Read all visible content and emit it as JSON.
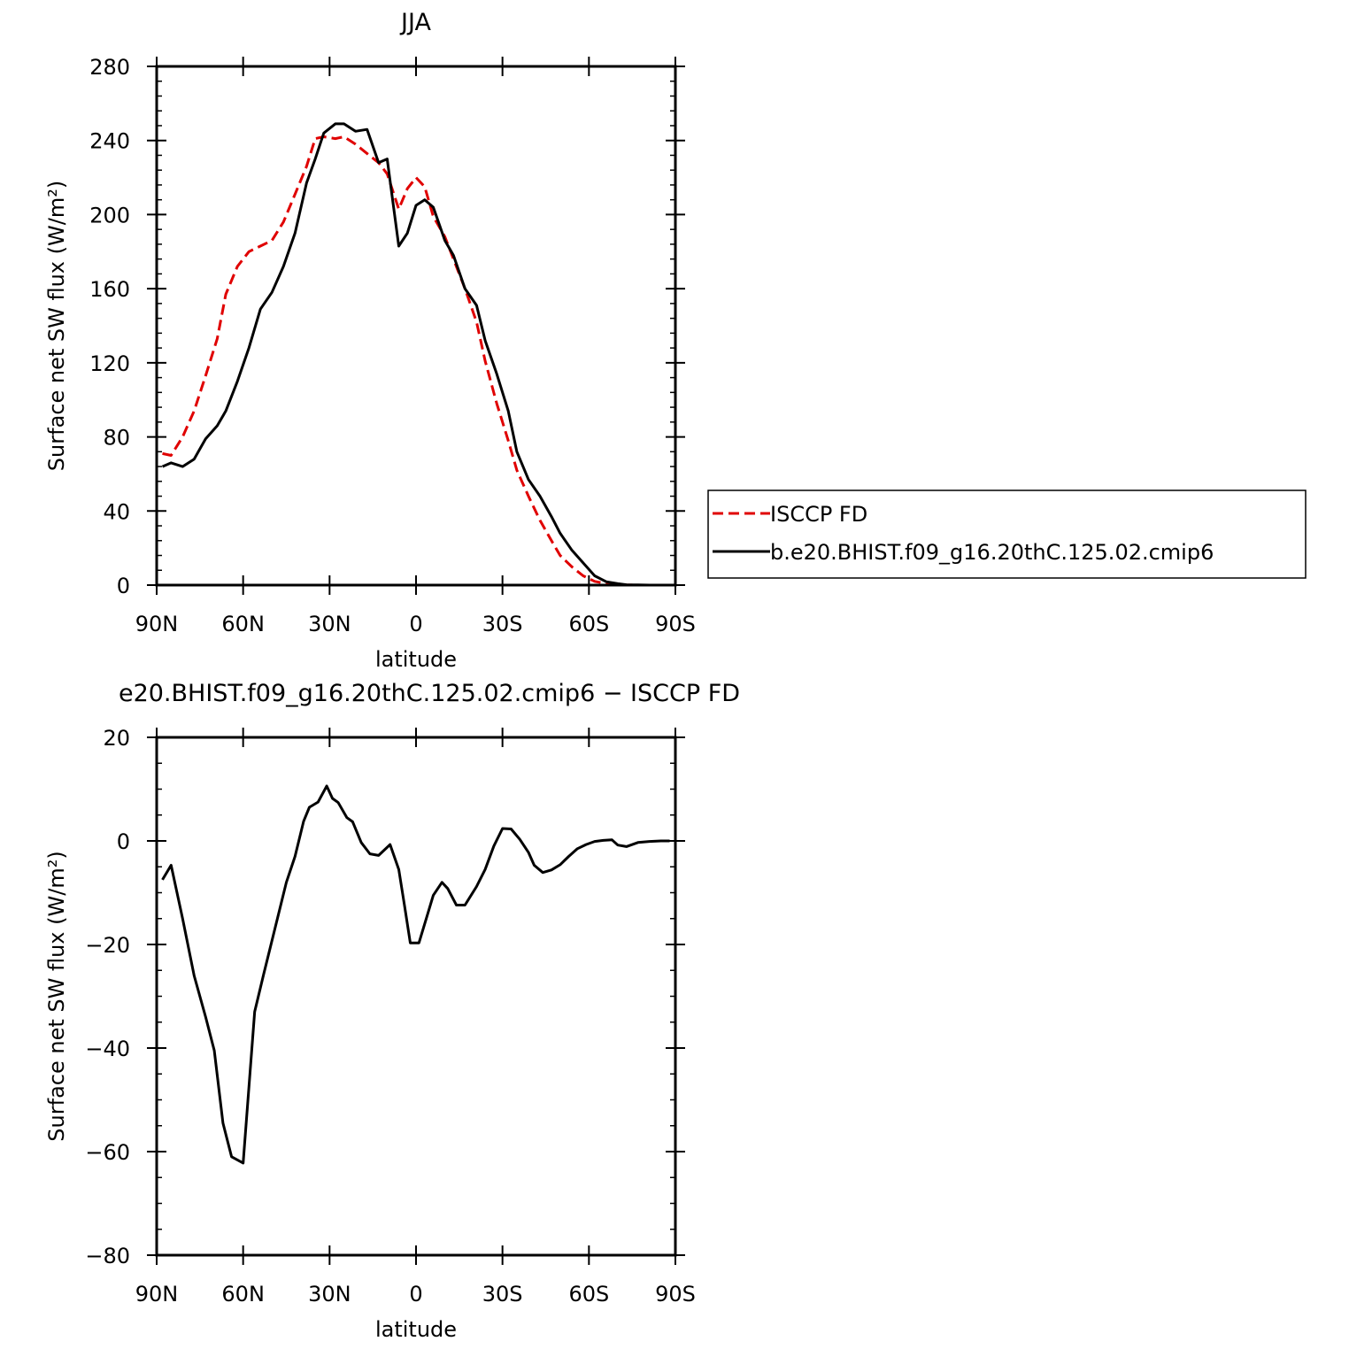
{
  "chart_data": [
    {
      "type": "line",
      "title": "JJA",
      "xlabel": "latitude",
      "ylabel": "Surface net SW flux (W/m²)",
      "xlim": [
        90,
        -90
      ],
      "ylim": [
        0,
        280
      ],
      "x_ticks": [
        {
          "value": 90,
          "label": "90N"
        },
        {
          "value": 60,
          "label": "60N"
        },
        {
          "value": 30,
          "label": "30N"
        },
        {
          "value": 0,
          "label": "0"
        },
        {
          "value": -30,
          "label": "30S"
        },
        {
          "value": -60,
          "label": "60S"
        },
        {
          "value": -90,
          "label": "90S"
        }
      ],
      "y_ticks": [
        {
          "value": 0,
          "label": "0"
        },
        {
          "value": 40,
          "label": "40"
        },
        {
          "value": 80,
          "label": "80"
        },
        {
          "value": 120,
          "label": "120"
        },
        {
          "value": 160,
          "label": "160"
        },
        {
          "value": 200,
          "label": "200"
        },
        {
          "value": 240,
          "label": "240"
        },
        {
          "value": 280,
          "label": "280"
        }
      ],
      "legend_position": "outside-right",
      "series": [
        {
          "name": "ISCCP FD",
          "color": "#e00000",
          "dash": true,
          "x": [
            88,
            85,
            81,
            77,
            73,
            69,
            66,
            62,
            58,
            54,
            50,
            46,
            42,
            38,
            35,
            32,
            28,
            25,
            21,
            17,
            13,
            10,
            6,
            3,
            0,
            -3,
            -6,
            -10,
            -13,
            -17,
            -21,
            -24,
            -28,
            -32,
            -35,
            -39,
            -43,
            -47,
            -50,
            -54,
            -58,
            -62,
            -66,
            -70,
            -73,
            -77,
            -81,
            -85,
            -88
          ],
          "y": [
            71,
            70,
            80,
            94,
            113,
            133,
            157,
            172,
            180,
            183,
            186,
            196,
            211,
            226,
            241,
            242,
            241,
            242,
            238,
            233,
            228,
            222,
            203,
            214,
            220,
            215,
            199,
            188,
            176,
            160,
            142,
            121,
            98,
            78,
            62,
            48,
            35,
            24,
            16,
            10,
            5,
            2,
            0.8,
            0.3,
            0.1,
            0,
            0,
            0,
            0
          ]
        },
        {
          "name": "b.e20.BHIST.f09_g16.20thC.125.02.cmip6",
          "color": "#000000",
          "dash": false,
          "x": [
            88,
            85,
            81,
            77,
            73,
            69,
            66,
            62,
            58,
            54,
            50,
            46,
            42,
            38,
            35,
            32,
            28,
            25,
            21,
            17,
            13,
            10,
            6,
            3,
            0,
            -3,
            -6,
            -10,
            -13,
            -17,
            -21,
            -24,
            -28,
            -32,
            -35,
            -39,
            -43,
            -47,
            -50,
            -54,
            -58,
            -62,
            -66,
            -70,
            -73,
            -77,
            -81,
            -85,
            -88
          ],
          "y": [
            64,
            66,
            64,
            68,
            79,
            86,
            94,
            110,
            128,
            149,
            158,
            172,
            190,
            217,
            230,
            244,
            249,
            249,
            245,
            246,
            228,
            230,
            183,
            190,
            205,
            208,
            204,
            186,
            178,
            160,
            151,
            132,
            114,
            94,
            72,
            57,
            48,
            37,
            28,
            19,
            12,
            5,
            1.8,
            0.8,
            0.2,
            0.1,
            0,
            0,
            0
          ]
        }
      ]
    },
    {
      "type": "line",
      "title": "e20.BHIST.f09_g16.20thC.125.02.cmip6 − ISCCP FD",
      "xlabel": "latitude",
      "ylabel": "Surface net SW flux (W/m²)",
      "xlim": [
        90,
        -90
      ],
      "ylim": [
        -80,
        20
      ],
      "x_ticks": [
        {
          "value": 90,
          "label": "90N"
        },
        {
          "value": 60,
          "label": "60N"
        },
        {
          "value": 30,
          "label": "30N"
        },
        {
          "value": 0,
          "label": "0"
        },
        {
          "value": -30,
          "label": "30S"
        },
        {
          "value": -60,
          "label": "60S"
        },
        {
          "value": -90,
          "label": "90S"
        }
      ],
      "y_ticks": [
        {
          "value": -80,
          "label": "−80"
        },
        {
          "value": -60,
          "label": "−60"
        },
        {
          "value": -40,
          "label": "−40"
        },
        {
          "value": -20,
          "label": "−20"
        },
        {
          "value": 0,
          "label": "0"
        },
        {
          "value": 20,
          "label": "20"
        }
      ],
      "series": [
        {
          "color": "#000000",
          "x": [
            88,
            85,
            81,
            77,
            73,
            70,
            67,
            64,
            60,
            56,
            53,
            49,
            45,
            42,
            39,
            37,
            34,
            31,
            29,
            27,
            24,
            22,
            19,
            16,
            13,
            9,
            6,
            4,
            2,
            -1,
            -4,
            -6,
            -9,
            -11,
            -14,
            -17,
            -21,
            -24,
            -27,
            -30,
            -33,
            -36,
            -39,
            -41,
            -44,
            -47,
            -50,
            -53,
            -56,
            -59,
            -62,
            -65,
            -68,
            -70,
            -73,
            -77,
            -81,
            -85,
            -88
          ],
          "y": [
            -7.5,
            -4.7,
            -15,
            -26,
            -34,
            -40.5,
            -54.5,
            -61,
            -62.2,
            -33,
            -26,
            -17,
            -8,
            -3,
            3.8,
            6.5,
            7.5,
            10.6,
            8.2,
            7.4,
            4.5,
            3.7,
            -0.3,
            -2.5,
            -2.8,
            -0.7,
            -5.5,
            -12.5,
            -19.7,
            -19.7,
            -14.2,
            -10.5,
            -8,
            -9.2,
            -12.4,
            -12.4,
            -8.8,
            -5.5,
            -1,
            2.4,
            2.3,
            0.3,
            -2.2,
            -4.7,
            -6.1,
            -5.6,
            -4.6,
            -3,
            -1.5,
            -0.7,
            -0.1,
            0.1,
            0.2,
            -0.8,
            -1.1,
            -0.3,
            -0.1,
            0,
            0
          ]
        }
      ]
    }
  ]
}
